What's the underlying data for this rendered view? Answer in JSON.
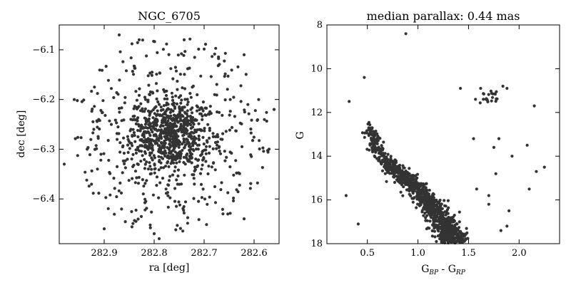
{
  "colors": {
    "points": "#333333",
    "axes": "#000000",
    "background": "#ffffff"
  },
  "chart_data": [
    {
      "type": "scatter",
      "title": "NGC_6705",
      "xlabel": "ra [deg]",
      "ylabel": "dec [deg]",
      "xlim": [
        282.99,
        282.55
      ],
      "ylim": [
        -6.49,
        -6.05
      ],
      "x_inverted": true,
      "xticks": [
        282.9,
        282.8,
        282.7,
        282.6
      ],
      "xtick_labels": [
        "282.9",
        "282.8",
        "282.7",
        "282.6"
      ],
      "yticks": [
        -6.1,
        -6.2,
        -6.3,
        -6.4
      ],
      "ytick_labels": [
        "−6.1",
        "−6.2",
        "−6.3",
        "−6.4"
      ],
      "grid": false,
      "cluster_center": [
        282.767,
        -6.272
      ],
      "cluster_core_radius_deg": 0.05,
      "field_radius_deg": 0.2,
      "n_core_points": 720,
      "n_field_points": 380,
      "outliers": [
        [
          282.87,
          -6.07
        ],
        [
          282.83,
          -6.08
        ],
        [
          282.74,
          -6.08
        ],
        [
          282.62,
          -6.11
        ],
        [
          282.9,
          -6.46
        ],
        [
          282.8,
          -6.47
        ],
        [
          282.79,
          -6.48
        ],
        [
          282.62,
          -6.44
        ],
        [
          282.96,
          -6.2
        ],
        [
          282.57,
          -6.3
        ],
        [
          282.56,
          -6.22
        ],
        [
          282.98,
          -6.33
        ]
      ]
    },
    {
      "type": "scatter",
      "title": "median parallax: 0.44 mas",
      "xlabel": "G_BP - G_RP",
      "ylabel": "G",
      "xlabel_main": "G",
      "xlabel_sub1": "BP",
      "xlabel_sep": " - G",
      "xlabel_sub2": "RP",
      "xlim": [
        0.1,
        2.4
      ],
      "ylim": [
        18,
        8
      ],
      "y_inverted": true,
      "xticks": [
        0.5,
        1.0,
        1.5,
        2.0
      ],
      "xtick_labels": [
        "0.5",
        "1.0",
        "1.5",
        "2.0"
      ],
      "yticks": [
        8,
        10,
        12,
        14,
        16,
        18
      ],
      "ytick_labels": [
        "8",
        "10",
        "12",
        "14",
        "16",
        "18"
      ],
      "grid": false,
      "main_sequence": [
        [
          0.52,
          12.5
        ],
        [
          0.56,
          13.2
        ],
        [
          0.62,
          13.9
        ],
        [
          0.72,
          14.4
        ],
        [
          0.85,
          14.9
        ],
        [
          0.96,
          15.3
        ],
        [
          1.05,
          15.8
        ],
        [
          1.13,
          16.2
        ],
        [
          1.21,
          16.7
        ],
        [
          1.27,
          17.2
        ],
        [
          1.32,
          17.6
        ],
        [
          1.36,
          18.0
        ]
      ],
      "n_sequence_points": 1100,
      "red_clump": [
        1.68,
        11.3
      ],
      "n_clump_points": 22,
      "outliers": [
        [
          0.88,
          8.4
        ],
        [
          0.47,
          10.4
        ],
        [
          0.32,
          11.5
        ],
        [
          0.29,
          15.8
        ],
        [
          0.41,
          17.1
        ],
        [
          1.42,
          10.9
        ],
        [
          1.62,
          10.9
        ],
        [
          1.84,
          10.8
        ],
        [
          1.88,
          10.9
        ],
        [
          2.15,
          11.7
        ],
        [
          1.55,
          13.2
        ],
        [
          1.8,
          13.2
        ],
        [
          1.75,
          13.6
        ],
        [
          2.08,
          13.5
        ],
        [
          1.93,
          14.0
        ],
        [
          2.25,
          14.5
        ],
        [
          2.17,
          14.7
        ],
        [
          1.77,
          14.8
        ],
        [
          2.1,
          15.5
        ],
        [
          1.7,
          15.8
        ],
        [
          1.9,
          16.5
        ],
        [
          1.88,
          17.2
        ],
        [
          1.82,
          17.4
        ],
        [
          1.58,
          15.5
        ],
        [
          1.7,
          16.2
        ]
      ]
    }
  ]
}
